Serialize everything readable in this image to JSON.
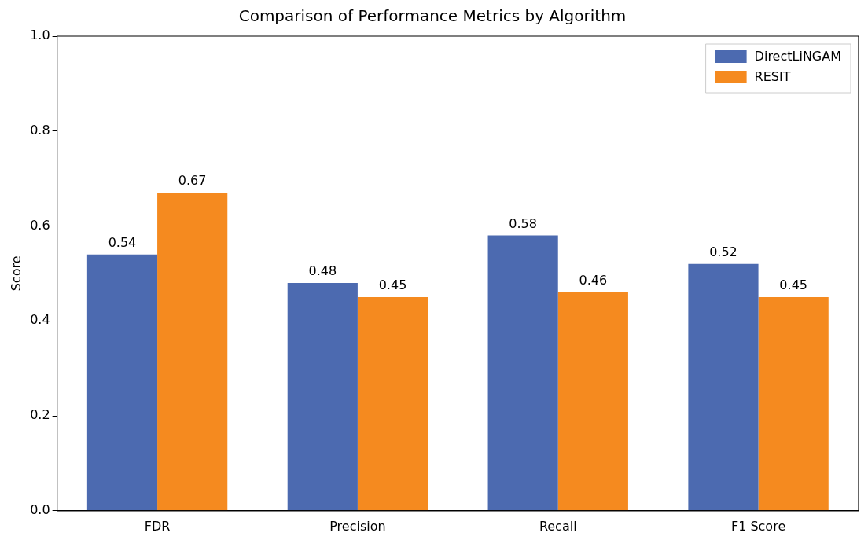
{
  "chart_data": {
    "type": "bar",
    "title": "Comparison of Performance Metrics by Algorithm",
    "ylabel": "Score",
    "categories": [
      "FDR",
      "Precision",
      "Recall",
      "F1 Score"
    ],
    "series": [
      {
        "name": "DirectLiNGAM",
        "color": "#4c6ab0",
        "values": [
          0.54,
          0.48,
          0.58,
          0.52
        ]
      },
      {
        "name": "RESIT",
        "color": "#f58a1f",
        "values": [
          0.67,
          0.45,
          0.46,
          0.45
        ]
      }
    ],
    "ylim": [
      0,
      1
    ],
    "yticks": [
      {
        "value": 0,
        "label": "0.0"
      },
      {
        "value": 0.2,
        "label": "0.2"
      },
      {
        "value": 0.4,
        "label": "0.4"
      },
      {
        "value": 0.6,
        "label": "0.6"
      },
      {
        "value": 0.8,
        "label": "0.8"
      },
      {
        "value": 1,
        "label": "1.0"
      }
    ],
    "grid": false,
    "legend": "top right",
    "data_labels": true
  }
}
